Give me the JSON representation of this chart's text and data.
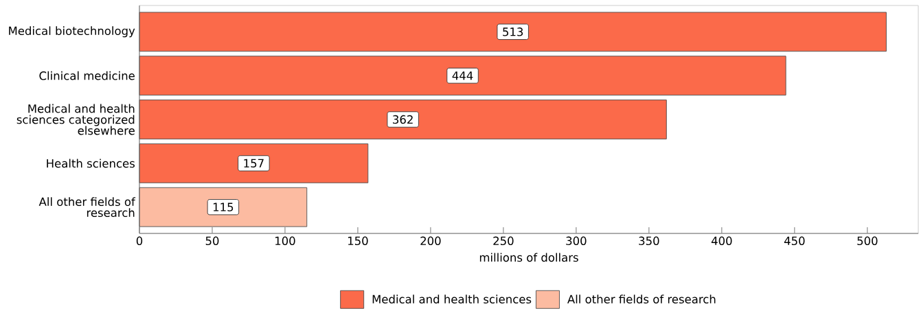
{
  "chart_data": {
    "type": "bar",
    "orientation": "horizontal",
    "stacked": true,
    "categories": [
      "Medical biotechnology",
      "Clinical medicine",
      "Medical and health sciences categorized elsewhere",
      "Health sciences",
      "All other fields of research"
    ],
    "series": [
      {
        "name": "Medical and health sciences",
        "color": "#fb6a4a",
        "values": [
          513,
          444,
          362,
          157,
          null
        ]
      },
      {
        "name": "All other fields of research",
        "color": "#fcbba1",
        "values": [
          null,
          null,
          null,
          null,
          115
        ]
      }
    ],
    "xlabel": "millions of dollars",
    "xlim": [
      0,
      535
    ],
    "xticks": [
      0,
      50,
      100,
      150,
      200,
      250,
      300,
      350,
      400,
      450,
      500
    ],
    "data_labels": true,
    "legend": "bottom"
  }
}
